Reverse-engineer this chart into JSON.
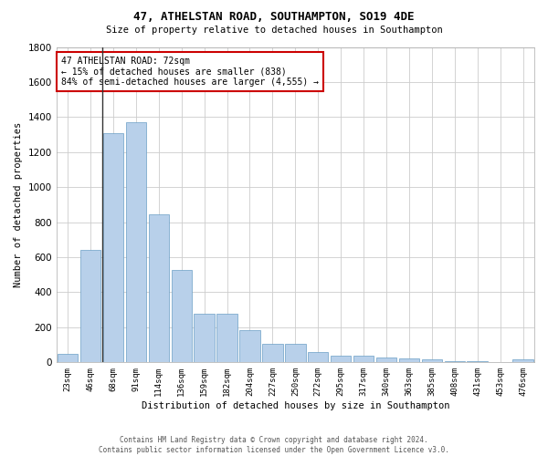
{
  "title": "47, ATHELSTAN ROAD, SOUTHAMPTON, SO19 4DE",
  "subtitle": "Size of property relative to detached houses in Southampton",
  "xlabel": "Distribution of detached houses by size in Southampton",
  "ylabel": "Number of detached properties",
  "footer_line1": "Contains HM Land Registry data © Crown copyright and database right 2024.",
  "footer_line2": "Contains public sector information licensed under the Open Government Licence v3.0.",
  "annotation_line1": "47 ATHELSTAN ROAD: 72sqm",
  "annotation_line2": "← 15% of detached houses are smaller (838)",
  "annotation_line3": "84% of semi-detached houses are larger (4,555) →",
  "bar_labels": [
    "23sqm",
    "46sqm",
    "68sqm",
    "91sqm",
    "114sqm",
    "136sqm",
    "159sqm",
    "182sqm",
    "204sqm",
    "227sqm",
    "250sqm",
    "272sqm",
    "295sqm",
    "317sqm",
    "340sqm",
    "363sqm",
    "385sqm",
    "408sqm",
    "431sqm",
    "453sqm",
    "476sqm"
  ],
  "bar_values": [
    50,
    640,
    1310,
    1370,
    845,
    530,
    275,
    275,
    185,
    105,
    105,
    60,
    40,
    40,
    30,
    20,
    15,
    5,
    5,
    2,
    15
  ],
  "bar_color": "#b8d0ea",
  "bar_edge_color": "#6a9ec5",
  "vline_color": "#333333",
  "annotation_box_color": "#cc0000",
  "ylim": [
    0,
    1800
  ],
  "yticks": [
    0,
    200,
    400,
    600,
    800,
    1000,
    1200,
    1400,
    1600,
    1800
  ],
  "bg_color": "#ffffff",
  "grid_color": "#cccccc",
  "vline_x_index": 2
}
